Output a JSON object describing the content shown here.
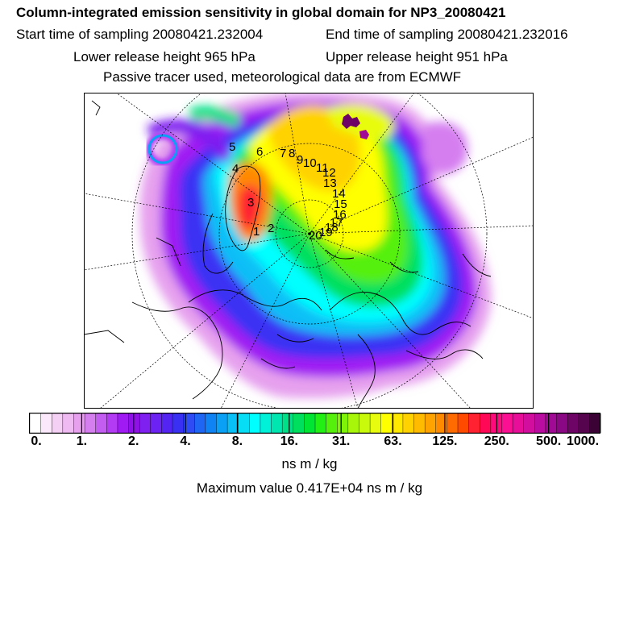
{
  "title": "Column-integrated emission sensitivity in global domain for NP3_20080421",
  "sampling": {
    "start_label": "Start time of sampling 20080421.232004",
    "end_label": "End time of sampling 20080421.232016"
  },
  "release": {
    "lower_label": "Lower release height  965 hPa",
    "upper_label": "Upper release height  951 hPa"
  },
  "tracer_note": "Passive tracer used, meteorological data are from ECMWF",
  "map": {
    "projection": "polar-stereographic-north",
    "trajectory_labels": [
      "1",
      "2",
      "3",
      "4",
      "5",
      "6",
      "7",
      "8",
      "9",
      "10",
      "11",
      "12",
      "13",
      "14",
      "15",
      "16",
      "17",
      "18",
      "19",
      "20"
    ]
  },
  "colorbar": {
    "tick_labels": [
      "0.",
      "1.",
      "2.",
      "4.",
      "8.",
      "16.",
      "31.",
      "63.",
      "125.",
      "250.",
      "500.",
      "1000."
    ],
    "colors": [
      "#ffffff",
      "#fbe8fb",
      "#f5d0f5",
      "#eebaf1",
      "#e6a0ee",
      "#d57ef0",
      "#c35df2",
      "#b23bf3",
      "#a01af3",
      "#9010e8",
      "#7f1ff0",
      "#6b22f2",
      "#5424f3",
      "#3a30f4",
      "#2f4cf4",
      "#1f66f4",
      "#0f83f4",
      "#0aa0f5",
      "#08bff6",
      "#07def6",
      "#00ffff",
      "#00f0d8",
      "#00e6b0",
      "#00e088",
      "#00e05e",
      "#00e433",
      "#22ef14",
      "#55f00b",
      "#80f408",
      "#a8f70a",
      "#c9fa0c",
      "#e8fc10",
      "#ffff00",
      "#ffe900",
      "#ffd200",
      "#ffbb00",
      "#ffa300",
      "#ff8a00",
      "#ff6b00",
      "#ff4a00",
      "#ff2230",
      "#ff0856",
      "#ff0a7c",
      "#fb0f93",
      "#e80e9a",
      "#d10e9e",
      "#ba0ca0",
      "#a00a94",
      "#8a0884",
      "#6e0566",
      "#55044d",
      "#3a0235"
    ]
  },
  "units_label": "ns m / kg",
  "max_value_label": "Maximum value  0.417E+04 ns m / kg"
}
